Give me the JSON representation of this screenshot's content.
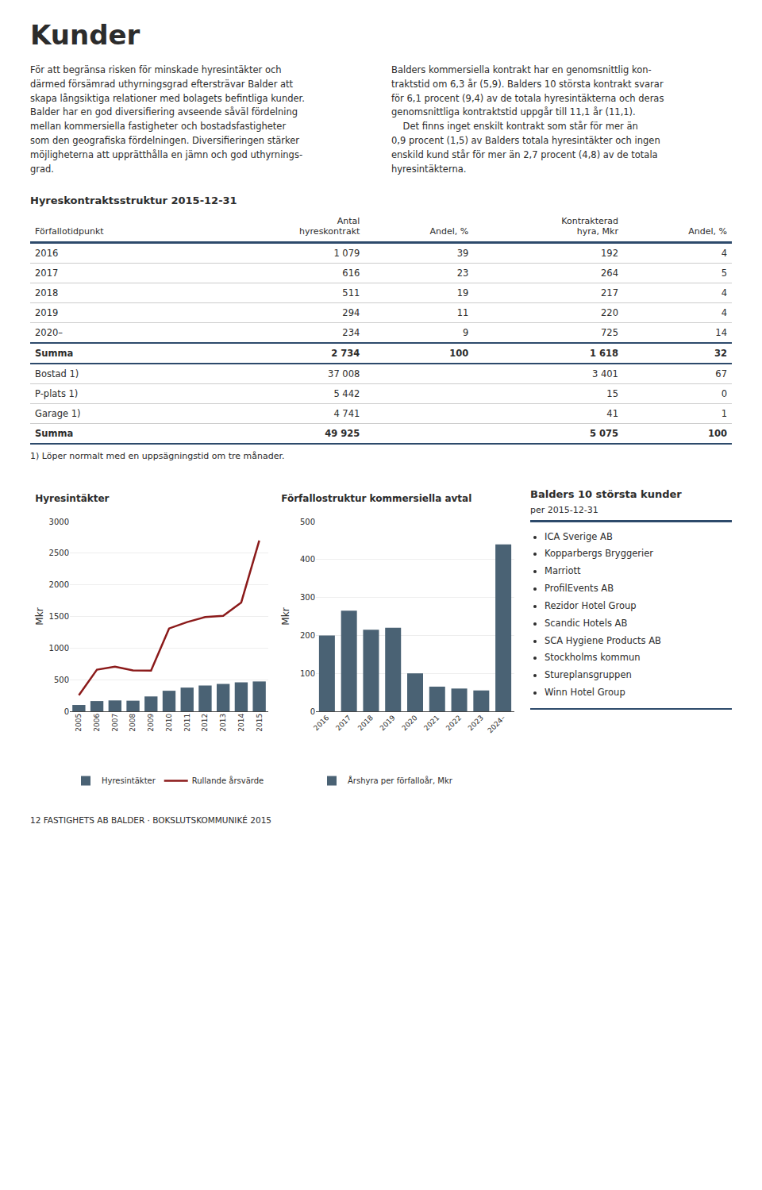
{
  "title": "Kunder",
  "text_columns": [
    "För att begränsa risken för minskade hyresintäkter och\ndärmed försämrad uthyrningsgrad eftersträvar Balder att\nskapa långsiktiga relationer med bolagets befintliga kunder.\nBalder har en god diversifiering avseende såväl fördelning\nmellan kommersiella fastigheter och bostadsfastigheter\nsom den geografiska fördelningen. Diversifieringen stärker\nmöjligheterna att upprätthålla en jämn och god uthyrnings-\ngrad.",
    "Balders kommersiella kontrakt har en genomsnittlig kon-\ntraktstid om 6,3 år (5,9). Balders 10 största kontrakt svarar\nför 6,1 procent (9,4) av de totala hyresintäkterna och deras\ngenomsnittliga kontraktstid uppgår till 11,1 år (11,1).\n    Det finns inget enskilt kontrakt som står för mer än\n0,9 procent (1,5) av Balders totala hyresintäkter och ingen\nenskild kund står för mer än 2,7 procent (4,8) av de totala\nhyresintäkterna."
  ],
  "table": {
    "title": "Hyreskontraktsstruktur 2015-12-31",
    "headers": [
      "Förfallotidpunkt",
      "Antal\nhyreskontrakt",
      "Andel, %",
      "Kontrakterad\nhyra, Mkr",
      "Andel, %"
    ],
    "rows": [
      [
        "2016",
        "1 079",
        "39",
        "192",
        "4"
      ],
      [
        "2017",
        "616",
        "23",
        "264",
        "5"
      ],
      [
        "2018",
        "511",
        "19",
        "217",
        "4"
      ],
      [
        "2019",
        "294",
        "11",
        "220",
        "4"
      ],
      [
        "2020–",
        "234",
        "9",
        "725",
        "14"
      ],
      [
        "Summa",
        "2 734",
        "100",
        "1 618",
        "32"
      ],
      [
        "Bostad 1)",
        "37 008",
        null,
        "3 401",
        "67"
      ],
      [
        "P-plats 1)",
        "5 442",
        null,
        "15",
        "0"
      ],
      [
        "Garage 1)",
        "4 741",
        null,
        "41",
        "1"
      ],
      [
        "Summa",
        "49 925",
        null,
        "5 075",
        "100"
      ]
    ],
    "bold_rows": [
      5,
      9
    ],
    "thick_line_after": [
      4,
      5,
      9
    ],
    "footnote": "1) Löper normalt med en uppsägningstid om tre månader."
  },
  "chart_data": [
    {
      "type": "bar",
      "title": "Hyresintäkter",
      "ylabel": "Mkr",
      "categories": [
        "2005",
        "2006",
        "2007",
        "2008",
        "2009",
        "2010",
        "2011",
        "2012",
        "2013",
        "2014",
        "2015"
      ],
      "series": [
        {
          "name": "Hyresintäkter",
          "type": "bar",
          "color": "#4a6274",
          "values": [
            100,
            162,
            172,
            168,
            235,
            325,
            375,
            408,
            433,
            458,
            472
          ]
        },
        {
          "name": "Rullande årsvärde",
          "type": "line",
          "color": "#8B1A1A",
          "values": [
            255,
            658,
            705,
            648,
            642,
            1310,
            1410,
            1490,
            1510,
            1720,
            2700
          ]
        }
      ],
      "ylim": [
        0,
        3000
      ],
      "yticks": [
        0,
        500,
        1000,
        1500,
        2000,
        2500,
        3000
      ],
      "grid": true,
      "legend": "bottom"
    },
    {
      "type": "bar",
      "title": "Förfallostruktur kommersiella avtal",
      "ylabel": "Mkr",
      "categories": [
        "2016",
        "2017",
        "2018",
        "2019",
        "2020",
        "2021",
        "2022",
        "2023",
        "2024–"
      ],
      "series": [
        {
          "name": "Årshyra per förfalloår, Mkr",
          "type": "bar",
          "color": "#4a6274",
          "values": [
            200,
            265,
            215,
            220,
            100,
            65,
            60,
            55,
            440
          ]
        }
      ],
      "ylim": [
        0,
        500
      ],
      "yticks": [
        0,
        100,
        200,
        300,
        400,
        500
      ],
      "grid": true,
      "legend": "bottom"
    }
  ],
  "customers": {
    "title": "Balders 10 största kunder",
    "subtitle": "per 2015-12-31",
    "items": [
      "ICA Sverige AB",
      "Kopparbergs Bryggerier",
      "Marriott",
      "ProfilEvents AB",
      "Rezidor Hotel Group",
      "Scandic Hotels AB",
      "SCA Hygiene Products AB",
      "Stockholms kommun",
      "Stureplansgruppen",
      "Winn Hotel Group"
    ]
  },
  "footer": "12   FASTIGHETS AB BALDER · BOKSLUTSKOMMUNIKÉ 2015"
}
